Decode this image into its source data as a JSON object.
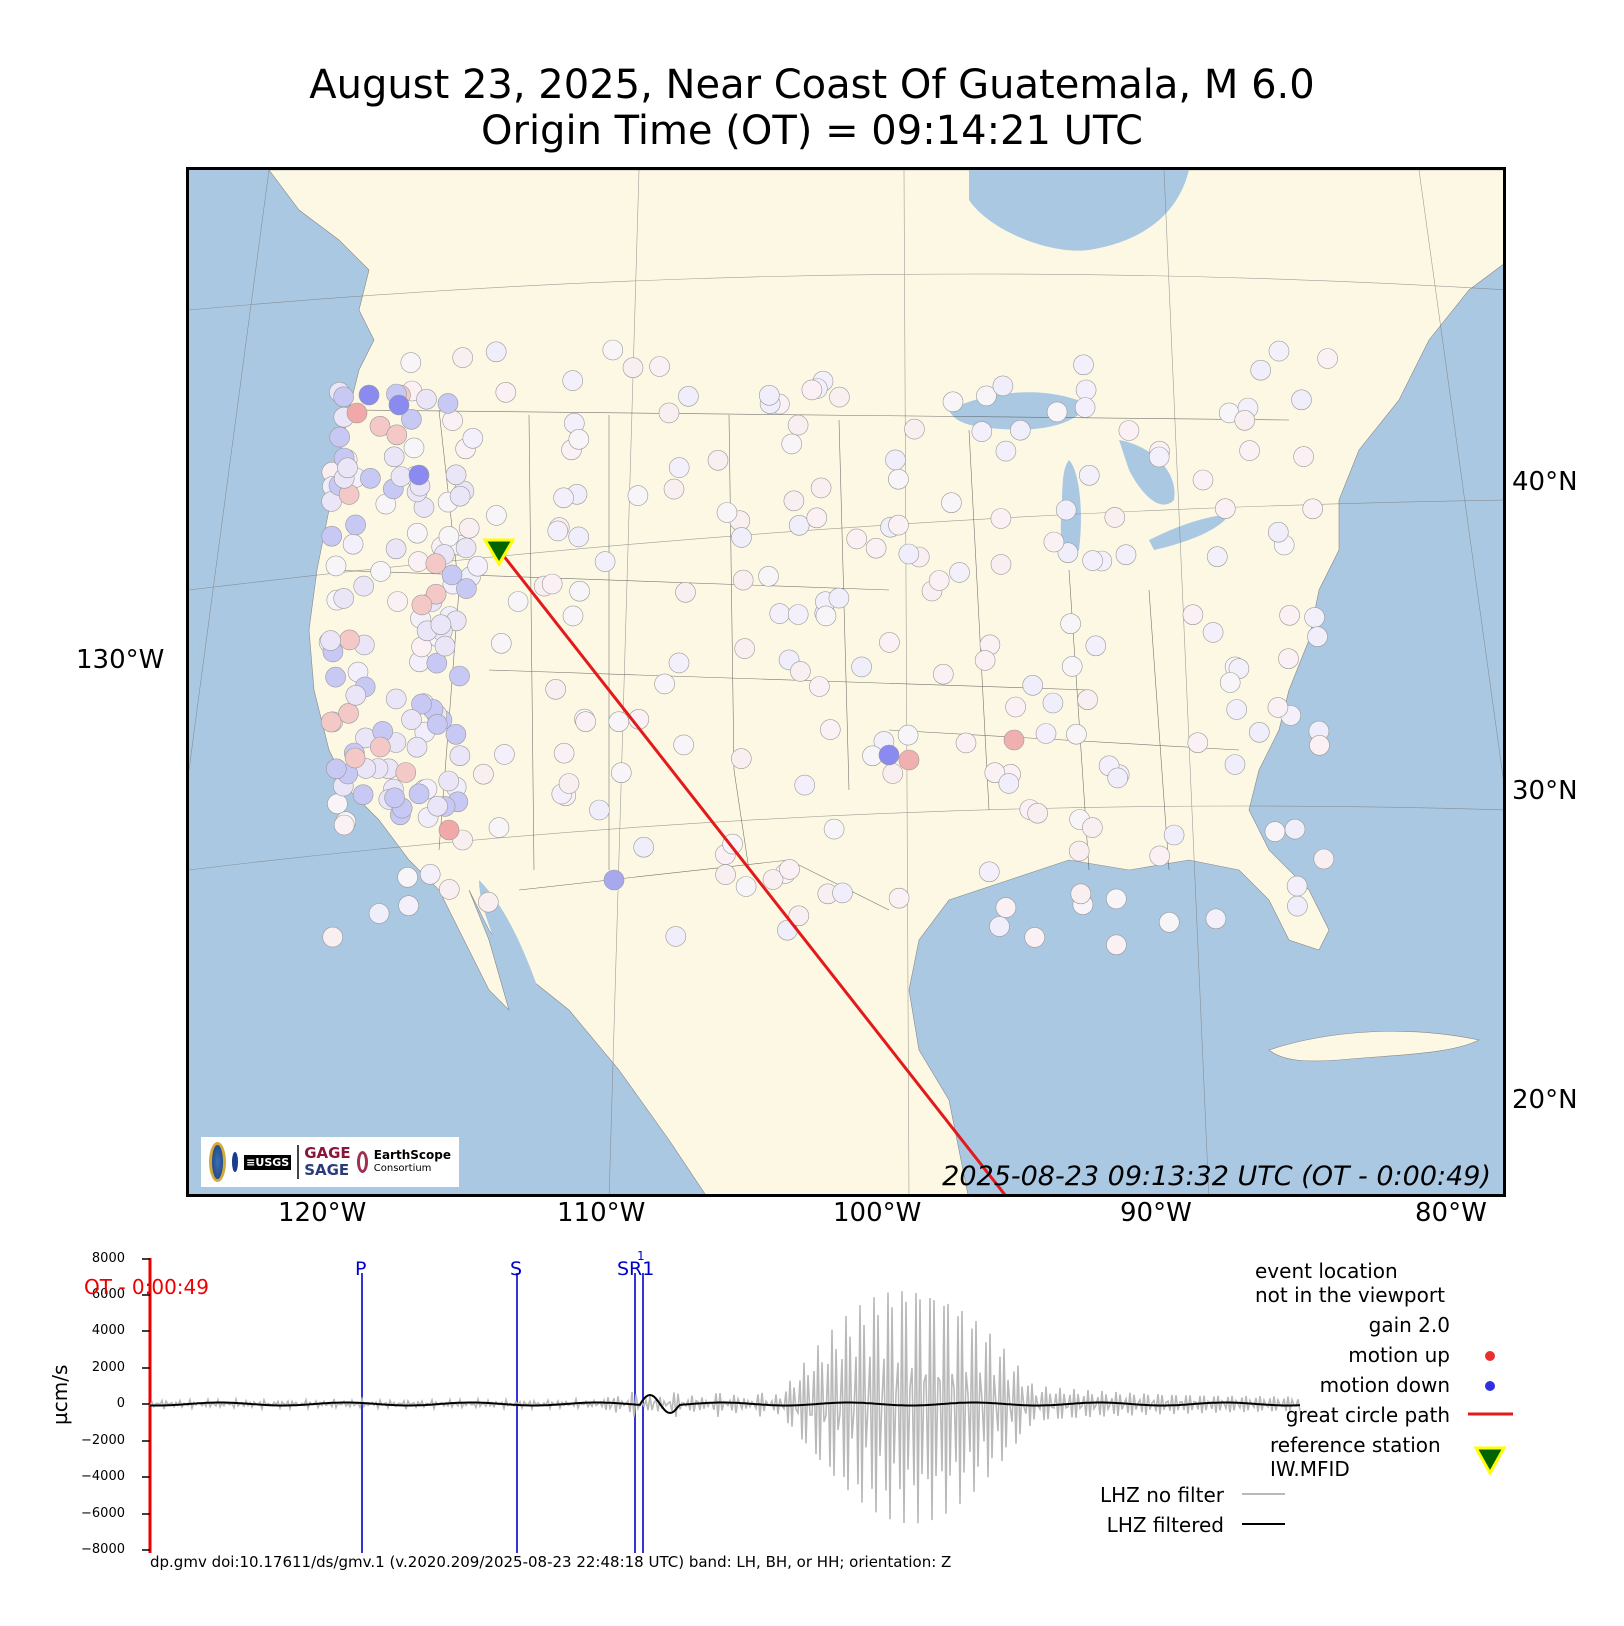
{
  "title": {
    "line1": "August 23, 2025, Near Coast Of Guatemala, M 6.0",
    "line2": "Origin Time (OT) = 09:14:21 UTC"
  },
  "map": {
    "lon_ticks": [
      "120°W",
      "110°W",
      "100°W",
      "90°W",
      "80°W"
    ],
    "lat_ticks": [
      "40°N",
      "30°N",
      "20°N"
    ],
    "left_lon_label": "130°W",
    "timestamp": "2025-08-23 09:13:32 UTC (OT - 0:00:49)",
    "colors": {
      "ocean": "#abc8e2",
      "land": "#fdf8e4",
      "path": "#e31a1c",
      "ref_fill": "#006400",
      "ref_edge": "#ffff00"
    },
    "logos": {
      "gage": "GAGE",
      "sage": "SAGE",
      "earthscope": "EarthScope",
      "consortium": "Consortium",
      "usgs": "≡USGS"
    }
  },
  "plot": {
    "y_ticks": [
      "8000",
      "6000",
      "4000",
      "2000",
      "0",
      "−2000",
      "−4000",
      "−6000",
      "−8000"
    ],
    "ylabel": "µcm/s",
    "ot_label": "OT - 0:00:49",
    "phases": [
      "P",
      "S",
      "SR1",
      "1"
    ],
    "footer": "dp.gmv doi:10.17611/ds/gmv.1 (v.2020.209/2025-08-23 22:48:18 UTC) band: LH, BH, or HH; orientation: Z"
  },
  "legend": {
    "event_line1": "event location",
    "event_line2": "not in the viewport",
    "gain": "gain  2.0",
    "motion_up": "motion up",
    "motion_down": "motion down",
    "great_circle": "great circle path",
    "ref_line1": "reference station",
    "ref_line2": "IW.MFID",
    "no_filter": "LHZ no filter",
    "filtered": "LHZ filtered",
    "up_color": "#e83030",
    "down_color": "#3030e0"
  }
}
